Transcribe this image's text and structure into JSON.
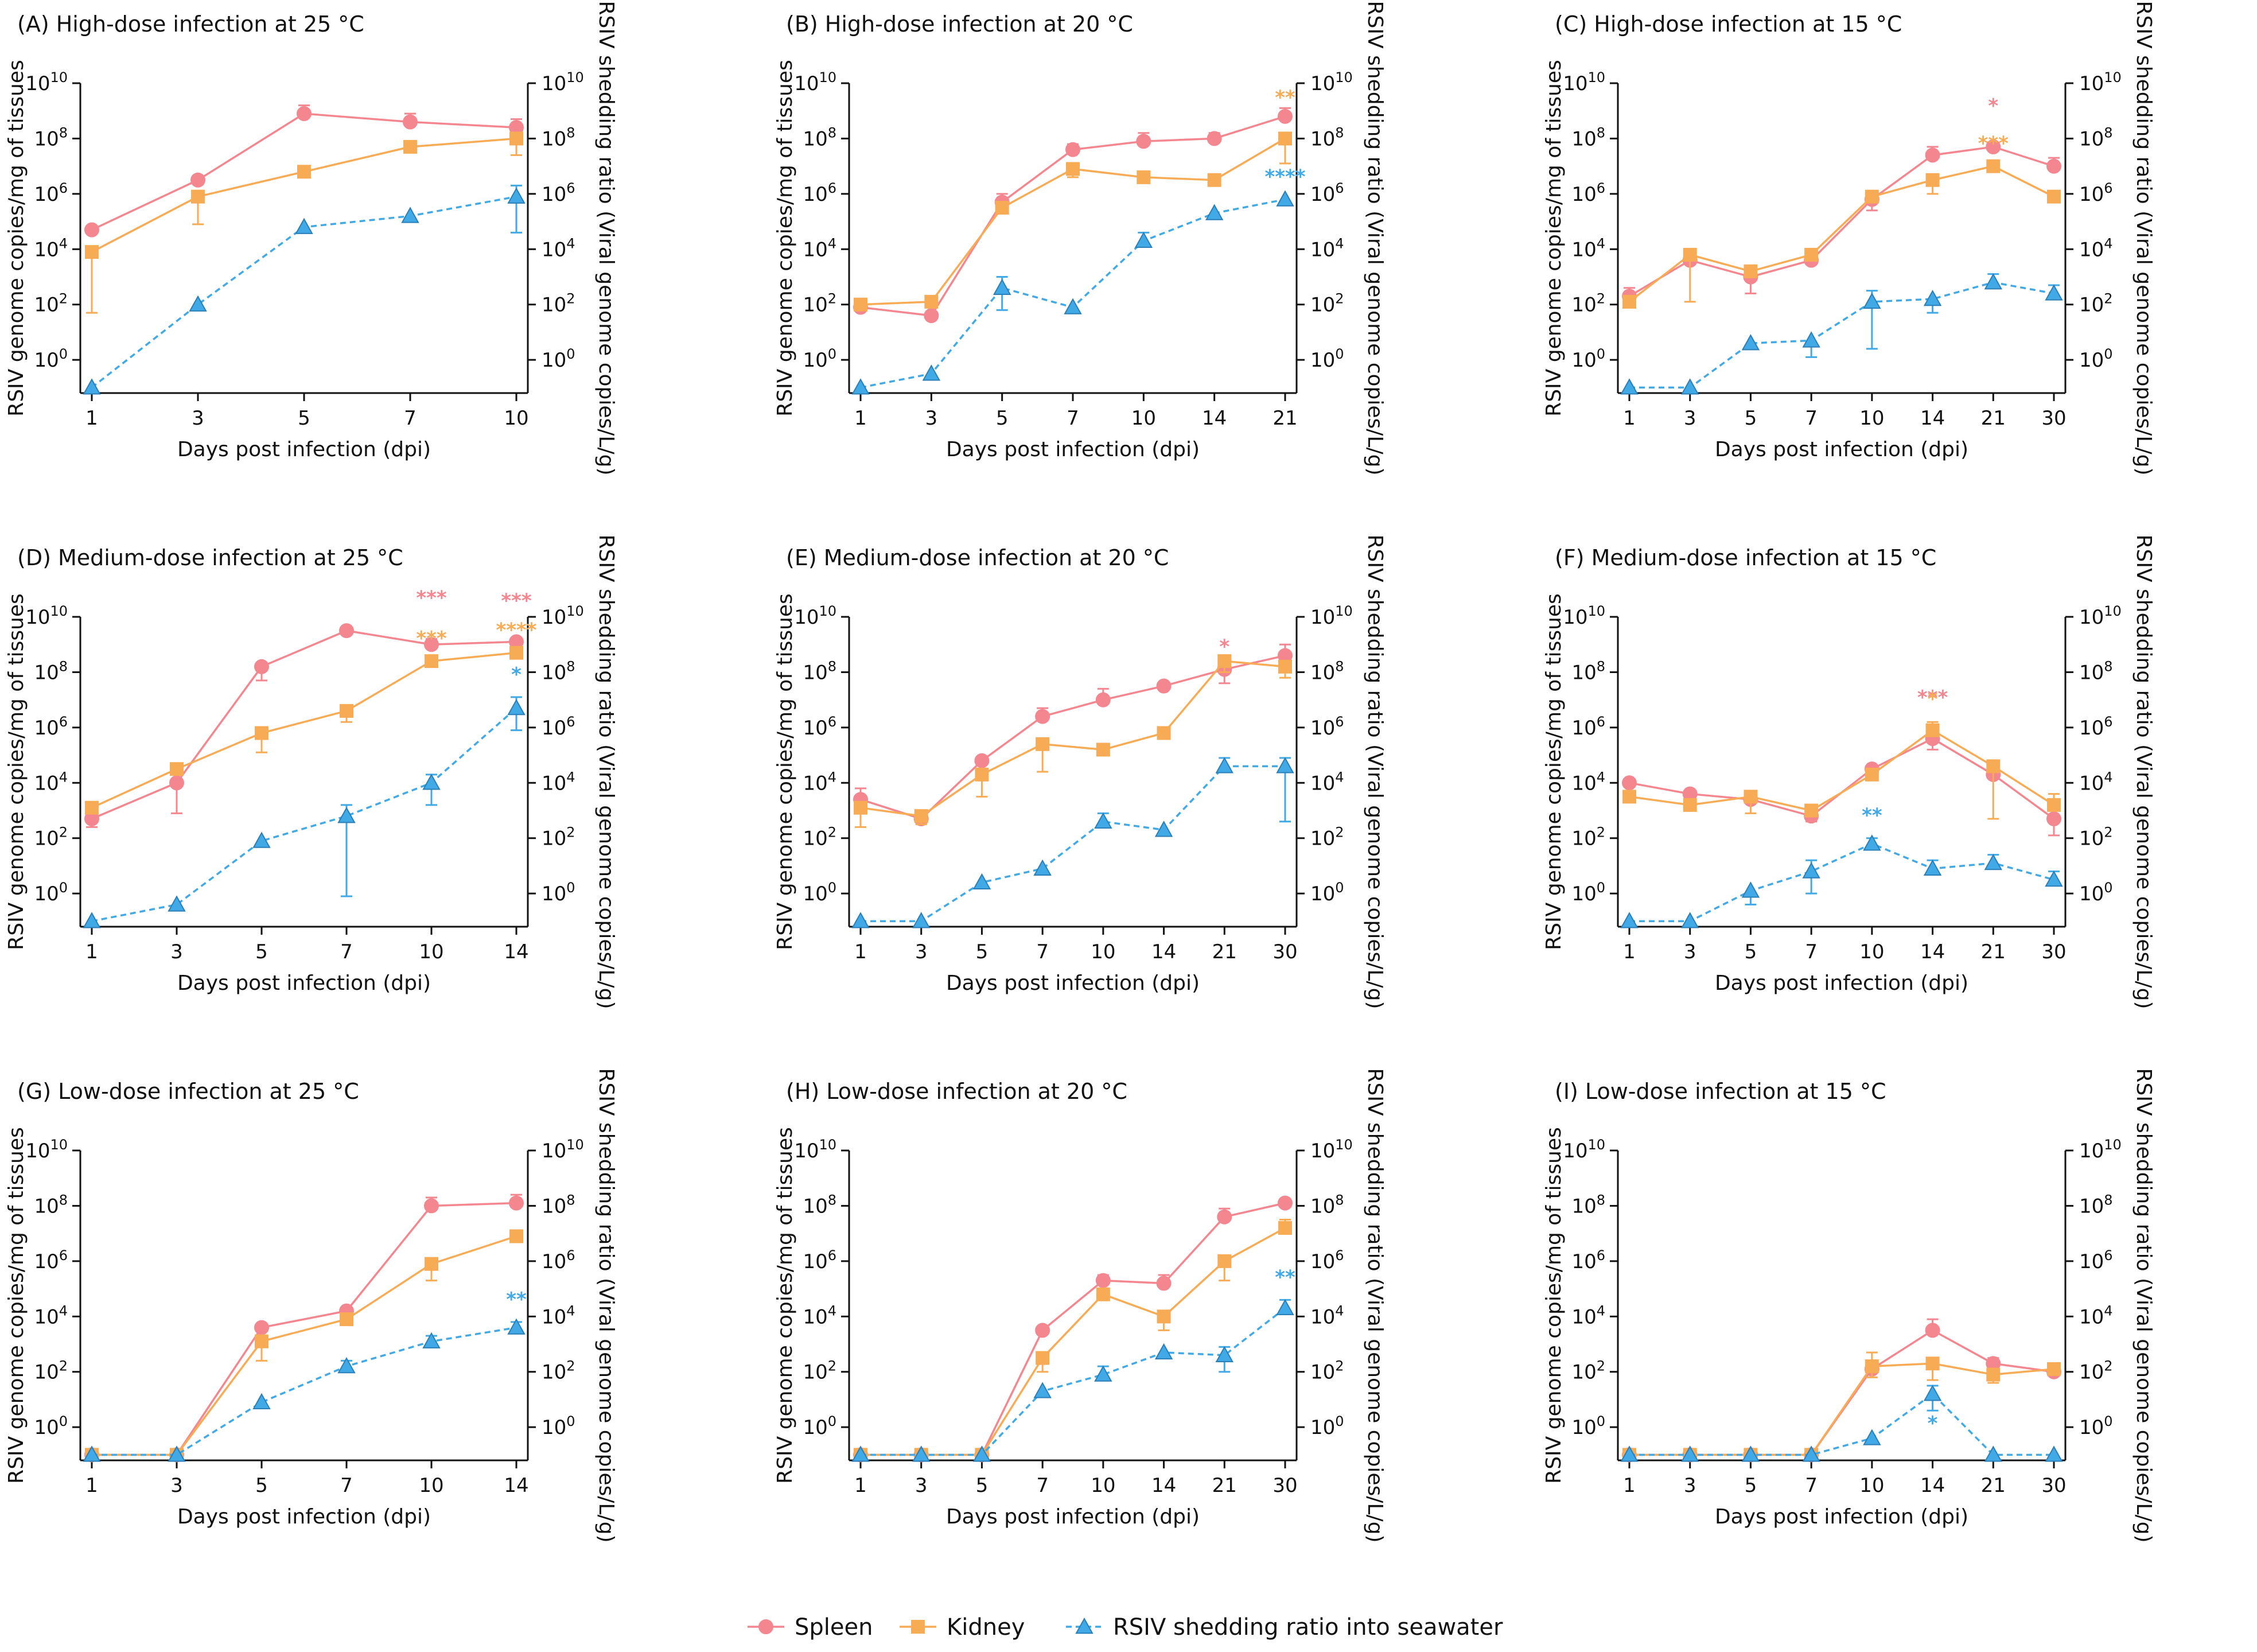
{
  "colors": {
    "spleen": "#f4868f",
    "kidney": "#f8ab55",
    "shedding": "#41a9e6"
  },
  "axes": {
    "x_label": "Days post infection (dpi)",
    "y_left_label": "RSIV genome copies/mg of tissues",
    "y_right_label": "RSIV shedding ratio (Viral genome copies/L/g)",
    "y_ticks_log": [
      0,
      2,
      4,
      6,
      8,
      10
    ],
    "y_tick_base": "10",
    "ylim_log": [
      -1.2,
      10
    ]
  },
  "legend": [
    {
      "key": "spleen",
      "label": "Spleen",
      "marker": "circle",
      "line": "solid"
    },
    {
      "key": "kidney",
      "label": "Kidney",
      "marker": "square",
      "line": "solid"
    },
    {
      "key": "shedding",
      "label": "RSIV shedding ratio into seawater",
      "marker": "triangle",
      "line": "dashed"
    }
  ],
  "chart_data": [
    {
      "id": "A",
      "type": "line",
      "title": "(A) High-dose infection at 25 °C",
      "categories": [
        "1",
        "3",
        "5",
        "7",
        "10"
      ],
      "series": [
        {
          "key": "spleen",
          "name": "Spleen",
          "values_log10": [
            4.7,
            6.5,
            8.9,
            8.6,
            8.4
          ],
          "err_up": [
            0,
            0,
            0.3,
            0.3,
            0.3
          ],
          "err_down": [
            0,
            0,
            0,
            0,
            0
          ]
        },
        {
          "key": "kidney",
          "name": "Kidney",
          "values_log10": [
            3.9,
            5.9,
            6.8,
            7.7,
            8.0
          ],
          "err_up": [
            0,
            0,
            0,
            0,
            0
          ],
          "err_down": [
            2.2,
            1.0,
            0,
            0,
            0.6
          ]
        },
        {
          "key": "shedding",
          "name": "RSIV shedding ratio into seawater",
          "values_log10": [
            -1.0,
            2.0,
            4.8,
            5.2,
            5.9
          ],
          "err_up": [
            0,
            0,
            0,
            0,
            0.4
          ],
          "err_down": [
            0,
            0,
            0.2,
            0,
            1.3
          ]
        }
      ],
      "annotations": []
    },
    {
      "id": "B",
      "type": "line",
      "title": "(B) High-dose infection at 20 °C",
      "categories": [
        "1",
        "3",
        "5",
        "7",
        "10",
        "14",
        "21"
      ],
      "series": [
        {
          "key": "spleen",
          "name": "Spleen",
          "values_log10": [
            1.9,
            1.6,
            5.7,
            7.6,
            7.9,
            8.0,
            8.8
          ],
          "err_up": [
            0,
            0,
            0.3,
            0.2,
            0.3,
            0.2,
            0.3
          ],
          "err_down": [
            0,
            0,
            0,
            0,
            0,
            0,
            0
          ]
        },
        {
          "key": "kidney",
          "name": "Kidney",
          "values_log10": [
            2.0,
            2.1,
            5.5,
            6.9,
            6.6,
            6.5,
            8.0
          ],
          "err_up": [
            0,
            0,
            0,
            0,
            0,
            0,
            0
          ],
          "err_down": [
            0,
            0,
            0,
            0.3,
            0,
            0,
            0.9
          ]
        },
        {
          "key": "shedding",
          "name": "RSIV shedding ratio into seawater",
          "values_log10": [
            -1.0,
            -0.5,
            2.6,
            1.9,
            4.3,
            5.3,
            5.8
          ],
          "err_up": [
            0,
            0,
            0.4,
            0,
            0.3,
            0,
            0
          ],
          "err_down": [
            0,
            0,
            0.8,
            0,
            0,
            0,
            0
          ]
        }
      ],
      "annotations": [
        {
          "x": "21",
          "key": "kidney",
          "text": "**",
          "level": 1
        },
        {
          "x": "21",
          "key": "shedding",
          "text": "****",
          "level": 0
        }
      ]
    },
    {
      "id": "C",
      "type": "line",
      "title": "(C) High-dose infection at 15 °C",
      "categories": [
        "1",
        "3",
        "5",
        "7",
        "10",
        "14",
        "21",
        "30"
      ],
      "series": [
        {
          "key": "spleen",
          "name": "Spleen",
          "values_log10": [
            2.3,
            3.6,
            3.0,
            3.6,
            5.8,
            7.4,
            7.7,
            7.0
          ],
          "err_up": [
            0.3,
            0.4,
            0.4,
            0,
            0,
            0.3,
            0,
            0.3
          ],
          "err_down": [
            0,
            0,
            0.6,
            0,
            0.4,
            0,
            0,
            0
          ]
        },
        {
          "key": "kidney",
          "name": "Kidney",
          "values_log10": [
            2.1,
            3.8,
            3.2,
            3.8,
            5.9,
            6.5,
            7.0,
            5.9
          ],
          "err_up": [
            0,
            0,
            0,
            0,
            0,
            0,
            0,
            0
          ],
          "err_down": [
            0,
            1.7,
            0,
            0,
            0,
            0.5,
            0,
            0
          ]
        },
        {
          "key": "shedding",
          "name": "RSIV shedding ratio into seawater",
          "values_log10": [
            -1.0,
            -1.0,
            0.6,
            0.7,
            2.1,
            2.2,
            2.8,
            2.4
          ],
          "err_up": [
            0,
            0,
            0,
            0,
            0.4,
            0,
            0.3,
            0.3
          ],
          "err_down": [
            0,
            0,
            0,
            0.6,
            1.7,
            0.5,
            0,
            0
          ]
        }
      ],
      "annotations": [
        {
          "x": "21",
          "key": "spleen",
          "text": "*",
          "level": 1
        },
        {
          "x": "21",
          "key": "kidney",
          "text": "***",
          "level": 0
        }
      ]
    },
    {
      "id": "D",
      "type": "line",
      "title": "(D) Medium-dose infection at 25 °C",
      "categories": [
        "1",
        "3",
        "5",
        "7",
        "10",
        "14"
      ],
      "series": [
        {
          "key": "spleen",
          "name": "Spleen",
          "values_log10": [
            2.7,
            4.0,
            8.2,
            9.5,
            9.0,
            9.1
          ],
          "err_up": [
            0,
            0.6,
            0,
            0,
            0.2,
            0
          ],
          "err_down": [
            0.3,
            1.1,
            0.5,
            0,
            0,
            0
          ]
        },
        {
          "key": "kidney",
          "name": "Kidney",
          "values_log10": [
            3.1,
            4.5,
            5.8,
            6.6,
            8.4,
            8.7
          ],
          "err_up": [
            0,
            0,
            0,
            0,
            0,
            0
          ],
          "err_down": [
            0,
            0,
            0.7,
            0.4,
            0,
            0
          ]
        },
        {
          "key": "shedding",
          "name": "RSIV shedding ratio into seawater",
          "values_log10": [
            -1.0,
            -0.4,
            1.9,
            2.8,
            4.0,
            6.7
          ],
          "err_up": [
            0,
            0,
            0,
            0.4,
            0.3,
            0.4
          ],
          "err_down": [
            0,
            0,
            0,
            2.9,
            0.8,
            0.8
          ]
        }
      ],
      "annotations": [
        {
          "x": "10",
          "key": "spleen",
          "text": "***",
          "level": 1
        },
        {
          "x": "10",
          "key": "kidney",
          "text": "***",
          "level": 0
        },
        {
          "x": "14",
          "key": "spleen",
          "text": "***",
          "level": 1
        },
        {
          "x": "14",
          "key": "kidney",
          "text": "****",
          "level": 0
        },
        {
          "x": "14",
          "key": "shedding",
          "text": "*",
          "level": 0
        }
      ]
    },
    {
      "id": "E",
      "type": "line",
      "title": "(E) Medium-dose infection at 20 °C",
      "categories": [
        "1",
        "3",
        "5",
        "7",
        "10",
        "14",
        "21",
        "30"
      ],
      "series": [
        {
          "key": "spleen",
          "name": "Spleen",
          "values_log10": [
            3.4,
            2.7,
            4.8,
            6.4,
            7.0,
            7.5,
            8.1,
            8.6
          ],
          "err_up": [
            0.4,
            0,
            0,
            0.3,
            0.4,
            0,
            0,
            0.4
          ],
          "err_down": [
            0.3,
            0,
            0,
            0,
            0,
            0,
            0.5,
            0
          ]
        },
        {
          "key": "kidney",
          "name": "Kidney",
          "values_log10": [
            3.1,
            2.8,
            4.3,
            5.4,
            5.2,
            5.8,
            8.4,
            8.2
          ],
          "err_up": [
            0,
            0,
            0,
            0,
            0,
            0,
            0,
            0
          ],
          "err_down": [
            0.7,
            0.3,
            0.8,
            1.0,
            0,
            0,
            0.4,
            0.4
          ]
        },
        {
          "key": "shedding",
          "name": "RSIV shedding ratio into seawater",
          "values_log10": [
            -1.0,
            -1.0,
            0.4,
            0.9,
            2.6,
            2.3,
            4.6,
            4.6
          ],
          "err_up": [
            0,
            0,
            0,
            0,
            0.3,
            0,
            0.3,
            0.3
          ],
          "err_down": [
            0,
            0,
            0,
            0,
            0,
            0,
            0,
            2.0
          ]
        }
      ],
      "annotations": [
        {
          "x": "21",
          "key": "spleen",
          "text": "*",
          "level": 0
        }
      ]
    },
    {
      "id": "F",
      "type": "line",
      "title": "(F) Medium-dose infection at 15 °C",
      "categories": [
        "1",
        "3",
        "5",
        "7",
        "10",
        "14",
        "21",
        "30"
      ],
      "series": [
        {
          "key": "spleen",
          "name": "Spleen",
          "values_log10": [
            4.0,
            3.6,
            3.4,
            2.8,
            4.5,
            5.6,
            4.3,
            2.7
          ],
          "err_up": [
            0,
            0,
            0,
            0,
            0,
            0,
            0,
            0
          ],
          "err_down": [
            0,
            0,
            0,
            0.2,
            0,
            0.4,
            0,
            0.6
          ]
        },
        {
          "key": "kidney",
          "name": "Kidney",
          "values_log10": [
            3.5,
            3.2,
            3.5,
            3.0,
            4.3,
            5.9,
            4.6,
            3.2
          ],
          "err_up": [
            0,
            0,
            0,
            0,
            0,
            0.3,
            0,
            0.4
          ],
          "err_down": [
            0.2,
            0,
            0.6,
            0,
            0,
            0,
            1.9,
            0
          ]
        },
        {
          "key": "shedding",
          "name": "RSIV shedding ratio into seawater",
          "values_log10": [
            -1.0,
            -1.0,
            0.1,
            0.8,
            1.8,
            0.9,
            1.1,
            0.5
          ],
          "err_up": [
            0,
            0,
            0,
            0.4,
            0.2,
            0.3,
            0.3,
            0.3
          ],
          "err_down": [
            0,
            0,
            0.5,
            0.8,
            0,
            0,
            0,
            0
          ]
        }
      ],
      "annotations": [
        {
          "x": "14",
          "key": "spleen",
          "text": "***",
          "level": 1
        },
        {
          "x": "14",
          "key": "kidney",
          "text": "*",
          "level": 0
        },
        {
          "x": "10",
          "key": "shedding",
          "text": "**",
          "level": 0
        }
      ]
    },
    {
      "id": "G",
      "type": "line",
      "title": "(G) Low-dose infection at 25 °C",
      "categories": [
        "1",
        "3",
        "5",
        "7",
        "10",
        "14"
      ],
      "series": [
        {
          "key": "spleen",
          "name": "Spleen",
          "values_log10": [
            -1.0,
            -1.0,
            3.6,
            4.2,
            8.0,
            8.1
          ],
          "err_up": [
            0,
            0,
            0,
            0,
            0.3,
            0.3
          ],
          "err_down": [
            0,
            0,
            0,
            0,
            0,
            0
          ]
        },
        {
          "key": "kidney",
          "name": "Kidney",
          "values_log10": [
            -1.0,
            -1.0,
            3.1,
            3.9,
            5.9,
            6.9
          ],
          "err_up": [
            0,
            0,
            0,
            0,
            0,
            0
          ],
          "err_down": [
            0,
            0,
            0.7,
            0,
            0.6,
            0
          ]
        },
        {
          "key": "shedding",
          "name": "RSIV shedding ratio into seawater",
          "values_log10": [
            -1.0,
            -1.0,
            0.9,
            2.2,
            3.1,
            3.6
          ],
          "err_up": [
            0,
            0,
            0,
            0.2,
            0.2,
            0.2
          ],
          "err_down": [
            0,
            0,
            0,
            0,
            0,
            0
          ]
        }
      ],
      "annotations": [
        {
          "x": "14",
          "key": "shedding",
          "text": "**",
          "level": 0
        }
      ]
    },
    {
      "id": "H",
      "type": "line",
      "title": "(H) Low-dose infection at 20 °C",
      "categories": [
        "1",
        "3",
        "5",
        "7",
        "10",
        "14",
        "21",
        "30"
      ],
      "series": [
        {
          "key": "spleen",
          "name": "Spleen",
          "values_log10": [
            -1.0,
            -1.0,
            -1.0,
            3.5,
            5.3,
            5.2,
            7.6,
            8.1
          ],
          "err_up": [
            0,
            0,
            0,
            0,
            0.2,
            0.3,
            0.3,
            0
          ],
          "err_down": [
            0,
            0,
            0,
            0,
            0,
            0,
            0,
            0
          ]
        },
        {
          "key": "kidney",
          "name": "Kidney",
          "values_log10": [
            -1.0,
            -1.0,
            -1.0,
            2.5,
            4.8,
            4.0,
            6.0,
            7.2
          ],
          "err_up": [
            0,
            0,
            0,
            0,
            0,
            0,
            0,
            0.3
          ],
          "err_down": [
            0,
            0,
            0,
            0.5,
            0,
            0.5,
            0.7,
            0
          ]
        },
        {
          "key": "shedding",
          "name": "RSIV shedding ratio into seawater",
          "values_log10": [
            -1.0,
            -1.0,
            -1.0,
            1.3,
            1.9,
            2.7,
            2.6,
            4.3
          ],
          "err_up": [
            0,
            0,
            0,
            0,
            0.3,
            0,
            0.3,
            0.3
          ],
          "err_down": [
            0,
            0,
            0,
            0,
            0,
            0,
            0.6,
            0
          ]
        }
      ],
      "annotations": [
        {
          "x": "30",
          "key": "shedding",
          "text": "**",
          "level": 0
        }
      ]
    },
    {
      "id": "I",
      "type": "line",
      "title": "(I) Low-dose infection at 15 °C",
      "categories": [
        "1",
        "3",
        "5",
        "7",
        "10",
        "14",
        "21",
        "30"
      ],
      "series": [
        {
          "key": "spleen",
          "name": "Spleen",
          "values_log10": [
            -1.0,
            -1.0,
            -1.0,
            -1.0,
            2.1,
            3.5,
            2.3,
            2.0
          ],
          "err_up": [
            0,
            0,
            0,
            0,
            0,
            0.4,
            0.2,
            0
          ],
          "err_down": [
            0,
            0,
            0,
            0,
            0,
            0,
            0,
            0
          ]
        },
        {
          "key": "kidney",
          "name": "Kidney",
          "values_log10": [
            -1.0,
            -1.0,
            -1.0,
            -1.0,
            2.2,
            2.3,
            1.9,
            2.1
          ],
          "err_up": [
            0,
            0,
            0,
            0,
            0.5,
            0,
            0,
            0
          ],
          "err_down": [
            0,
            0,
            0,
            0,
            0.4,
            0.6,
            0.3,
            0
          ]
        },
        {
          "key": "shedding",
          "name": "RSIV shedding ratio into seawater",
          "values_log10": [
            -1.0,
            -1.0,
            -1.0,
            -1.0,
            -0.4,
            1.2,
            -1.0,
            -1.0
          ],
          "err_up": [
            0,
            0,
            0,
            0,
            0,
            0.3,
            0,
            0
          ],
          "err_down": [
            0,
            0,
            0,
            0,
            0,
            0.6,
            0,
            0
          ]
        }
      ],
      "annotations": [
        {
          "x": "14",
          "key": "shedding",
          "text": "*",
          "level": -1
        }
      ]
    }
  ]
}
